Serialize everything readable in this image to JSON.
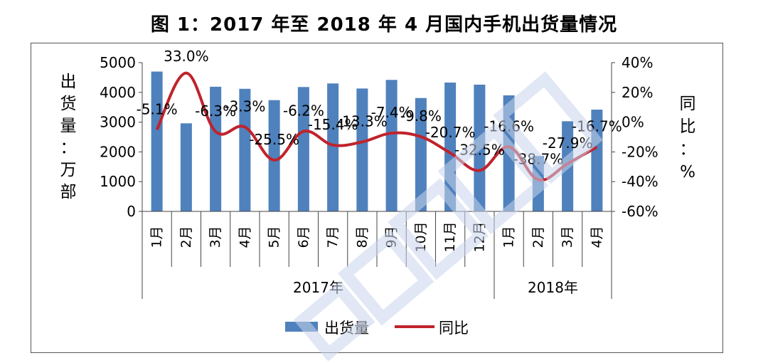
{
  "title": "图 1：2017 年至 2018 年 4 月国内手机出货量情况",
  "colors": {
    "bar": "#4f81bd",
    "line": "#c0232c",
    "frame": "#555555",
    "watermark": "#c9d5ec"
  },
  "chart_data": {
    "type": "bar",
    "categories": [
      "1月",
      "2月",
      "3月",
      "4月",
      "5月",
      "6月",
      "7月",
      "8月",
      "9月",
      "10月",
      "11月",
      "12月",
      "1月",
      "2月",
      "3月",
      "4月"
    ],
    "groups": [
      {
        "label": "2017年",
        "count": 12
      },
      {
        "label": "2018年",
        "count": 4
      }
    ],
    "series": [
      {
        "name": "出货量",
        "type": "bar",
        "axis": "left",
        "values": [
          4700,
          2960,
          4190,
          4120,
          3740,
          4180,
          4300,
          4130,
          4420,
          3810,
          4330,
          4260,
          3900,
          1860,
          3030,
          3420
        ]
      },
      {
        "name": "同比",
        "type": "line",
        "axis": "right",
        "values": [
          -5.1,
          33.0,
          -6.3,
          -3.3,
          -25.5,
          -6.2,
          -15.4,
          -13.3,
          -7.4,
          -9.8,
          -20.7,
          -32.5,
          -16.6,
          -38.7,
          -27.9,
          -16.7
        ],
        "labels": [
          "-5.1%",
          "33.0%",
          "-6.3%",
          "-3.3%",
          "-25.5%",
          "-6.2%",
          "-15.4%",
          "-13.3%",
          "-7.4%",
          "-9.8%",
          "-20.7%",
          "-32.5%",
          "-16.6%",
          "-38.7%",
          "-27.9%",
          "-16.7%"
        ]
      }
    ],
    "y_left": {
      "label": [
        "出",
        "货",
        "量",
        "：",
        "万",
        "部"
      ],
      "ticks": [
        "0",
        "1000",
        "2000",
        "3000",
        "4000",
        "5000"
      ],
      "lim": [
        0,
        5000
      ]
    },
    "y_right": {
      "label": [
        "同",
        "比",
        "：",
        "%"
      ],
      "ticks": [
        "-60%",
        "-40%",
        "-20%",
        "0%",
        "20%",
        "40%"
      ],
      "lim": [
        -60,
        40
      ]
    },
    "legend": {
      "position": "bottom",
      "items": [
        "出货量",
        "同比"
      ]
    },
    "grid": false
  }
}
